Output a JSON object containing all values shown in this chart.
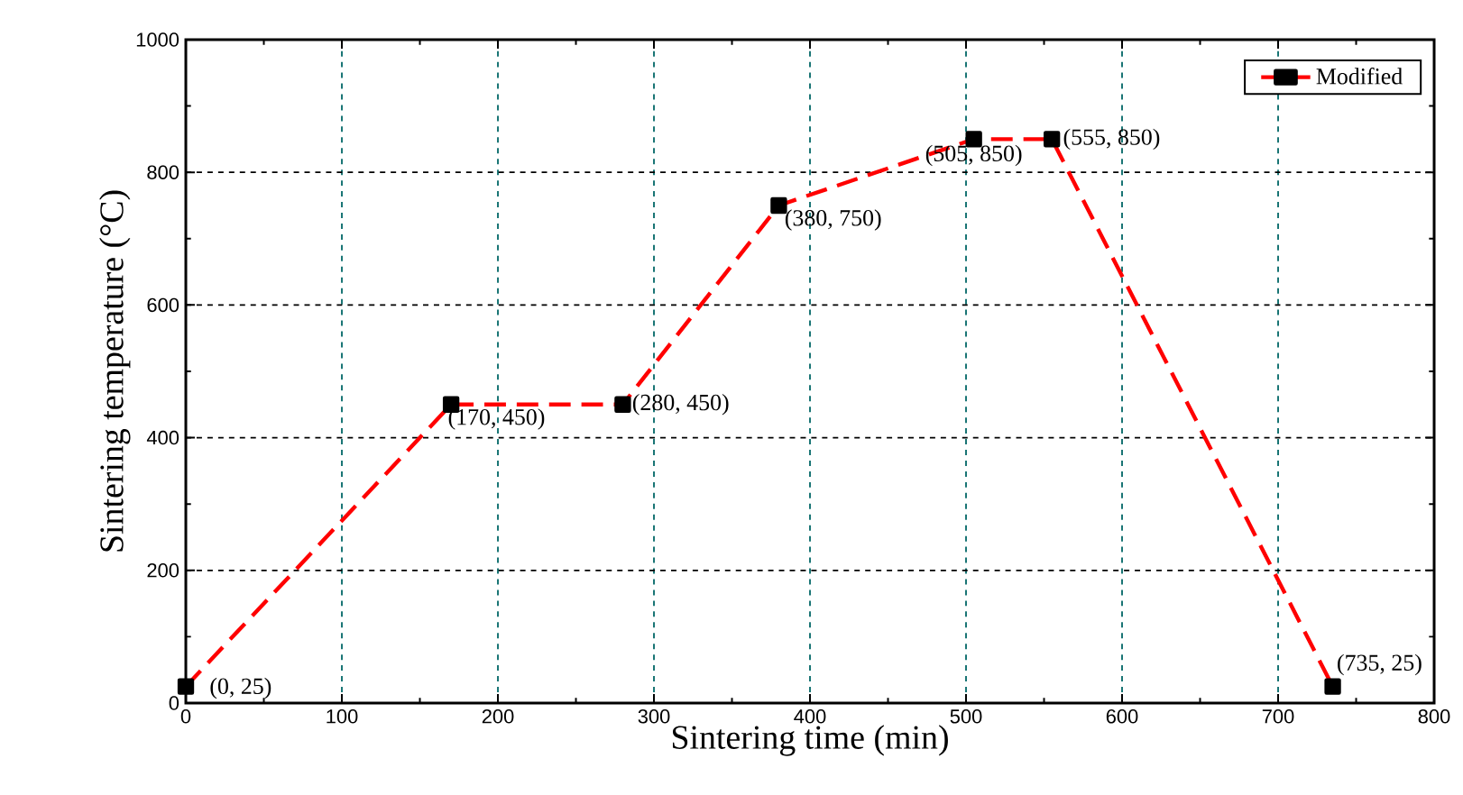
{
  "chart_data": {
    "type": "line",
    "xlabel": "Sintering time (min)",
    "ylabel": "Sintering temperature (°C)",
    "x": [
      0,
      170,
      280,
      380,
      505,
      555,
      735
    ],
    "series": [
      {
        "name": "Modified",
        "color": "#ff0000",
        "values": [
          25,
          450,
          450,
          750,
          850,
          850,
          25
        ]
      }
    ],
    "xlim": [
      0,
      800
    ],
    "xticks": [
      0,
      100,
      200,
      300,
      400,
      500,
      600,
      700,
      800
    ],
    "ylim": [
      0,
      1000
    ],
    "yticks": [
      0,
      200,
      400,
      600,
      800,
      1000
    ],
    "grid": true,
    "legend": "top right",
    "marker": "square",
    "line_style": "dashed",
    "annotations": [
      {
        "text": "(0, 25)",
        "x": 0,
        "y": 25
      },
      {
        "text": "(170, 450)",
        "x": 170,
        "y": 450
      },
      {
        "text": "(280, 450)",
        "x": 280,
        "y": 450
      },
      {
        "text": "(380, 750)",
        "x": 380,
        "y": 750
      },
      {
        "text": "(505, 850)",
        "x": 505,
        "y": 850
      },
      {
        "text": "(555, 850)",
        "x": 555,
        "y": 850
      },
      {
        "text": "(735, 25)",
        "x": 735,
        "y": 25
      }
    ]
  }
}
